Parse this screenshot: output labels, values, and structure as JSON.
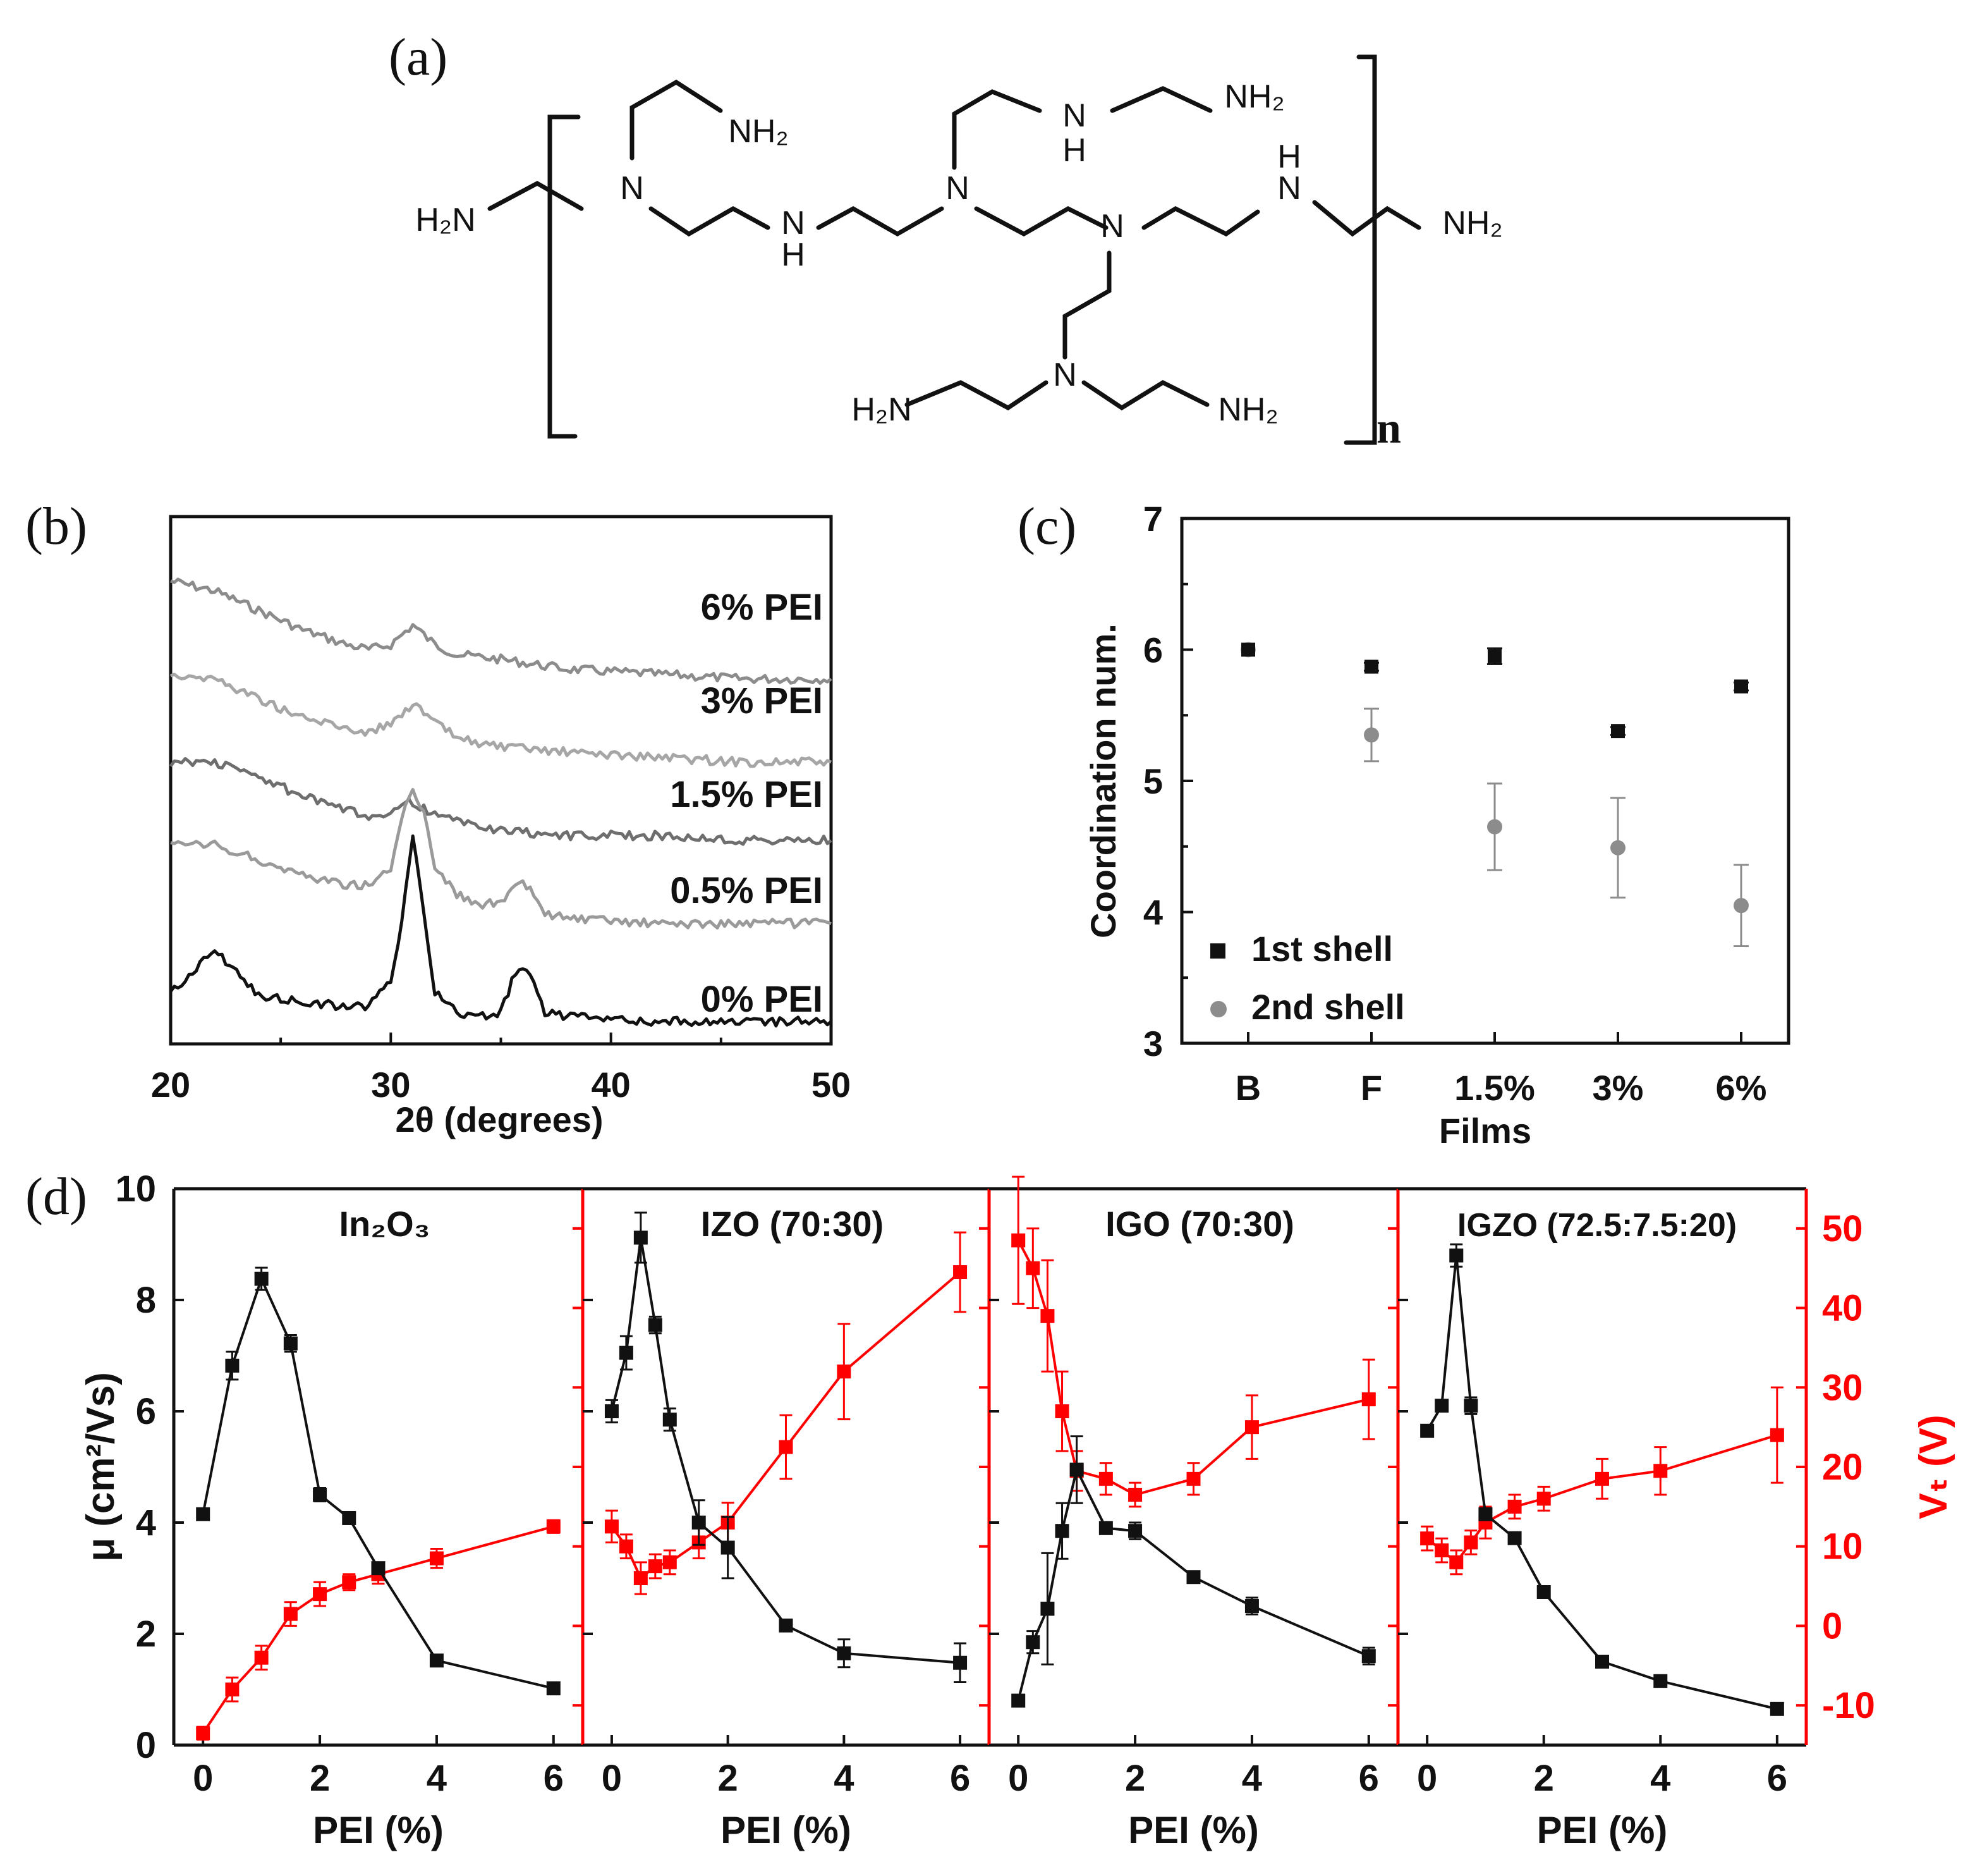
{
  "panel_labels": {
    "a": "(a)",
    "b": "(b)",
    "c": "(c)",
    "d": "(d)"
  },
  "colors": {
    "black": "#111111",
    "red": "#ff0000",
    "gray": "#8c8c8c"
  },
  "structure": {
    "subscript_n": "n",
    "atoms": [
      {
        "id": "h2n_left",
        "text": "H₂N"
      },
      {
        "id": "n1",
        "text": "N"
      },
      {
        "id": "nh2_top1",
        "text": "NH₂"
      },
      {
        "id": "nh_mid_N",
        "text": "N"
      },
      {
        "id": "nh_mid_H",
        "text": "H"
      },
      {
        "id": "n2",
        "text": "N"
      },
      {
        "id": "nh_top_N",
        "text": "N"
      },
      {
        "id": "nh_top_H",
        "text": "H"
      },
      {
        "id": "nh2_top2",
        "text": "NH₂"
      },
      {
        "id": "n3",
        "text": "N"
      },
      {
        "id": "nh_right_H",
        "text": "H"
      },
      {
        "id": "nh_right_N",
        "text": "N"
      },
      {
        "id": "nh2_right",
        "text": "NH₂"
      },
      {
        "id": "n4",
        "text": "N"
      },
      {
        "id": "h2n_bottom",
        "text": "H₂N"
      },
      {
        "id": "nh2_bottom",
        "text": "NH₂"
      }
    ]
  },
  "chart_data": [
    {
      "id": "b",
      "type": "line",
      "title": "",
      "xlabel": "2θ (degrees)",
      "ylabel": "",
      "xlim": [
        20,
        50
      ],
      "xticks": [
        "20",
        "30",
        "40",
        "50"
      ],
      "series": [
        {
          "name": "6% PEI",
          "color": "#8c8c8c",
          "x": [
            20,
            22,
            24,
            26,
            28,
            29,
            30,
            31,
            32,
            33,
            35,
            38,
            42,
            46,
            50
          ],
          "y": [
            0.92,
            0.9,
            0.86,
            0.82,
            0.79,
            0.78,
            0.79,
            0.83,
            0.79,
            0.77,
            0.76,
            0.74,
            0.73,
            0.72,
            0.72
          ]
        },
        {
          "name": "3% PEI",
          "color": "#a6a6a6",
          "x": [
            20,
            22,
            24,
            26,
            28,
            29,
            30,
            31,
            32,
            33,
            35,
            38,
            42,
            46,
            50
          ],
          "y": [
            0.73,
            0.72,
            0.68,
            0.64,
            0.62,
            0.61,
            0.63,
            0.67,
            0.63,
            0.6,
            0.58,
            0.57,
            0.56,
            0.55,
            0.55
          ]
        },
        {
          "name": "1.5% PEI",
          "color": "#6e6e6e",
          "x": [
            20,
            22,
            24,
            26,
            28,
            29,
            30,
            31,
            32,
            33,
            35,
            38,
            42,
            46,
            50
          ],
          "y": [
            0.55,
            0.55,
            0.52,
            0.48,
            0.45,
            0.44,
            0.45,
            0.47,
            0.44,
            0.43,
            0.41,
            0.4,
            0.4,
            0.39,
            0.39
          ]
        },
        {
          "name": "0.5% PEI",
          "color": "#9a9a9a",
          "x": [
            20,
            22,
            24,
            26,
            28,
            29,
            30,
            30.5,
            31,
            31.5,
            32,
            33,
            34,
            35,
            35.5,
            36,
            36.5,
            37,
            38,
            42,
            46,
            50
          ],
          "y": [
            0.38,
            0.38,
            0.35,
            0.32,
            0.3,
            0.3,
            0.33,
            0.44,
            0.49,
            0.45,
            0.34,
            0.28,
            0.26,
            0.26,
            0.29,
            0.3,
            0.28,
            0.24,
            0.23,
            0.22,
            0.22,
            0.22
          ]
        },
        {
          "name": "0% PEI",
          "color": "#111111",
          "x": [
            20,
            21,
            22,
            23,
            24,
            26,
            28,
            29,
            30,
            30.5,
            31,
            31.5,
            32,
            33,
            34,
            35,
            35.5,
            36,
            36.5,
            37,
            38,
            42,
            46,
            50
          ],
          "y": [
            0.08,
            0.12,
            0.17,
            0.12,
            0.07,
            0.06,
            0.05,
            0.05,
            0.1,
            0.22,
            0.4,
            0.25,
            0.08,
            0.04,
            0.03,
            0.04,
            0.1,
            0.13,
            0.1,
            0.04,
            0.03,
            0.02,
            0.02,
            0.02
          ]
        }
      ]
    },
    {
      "id": "c",
      "type": "scatter",
      "title": "",
      "xlabel": "Films",
      "ylabel": "Coordination num.",
      "ylim": [
        3,
        7
      ],
      "yticks": [
        "3",
        "4",
        "5",
        "6",
        "7"
      ],
      "categories": [
        "B",
        "F",
        "1.5%",
        "3%",
        "6%"
      ],
      "legend": "bottom-left",
      "series": [
        {
          "name": "1st shell",
          "marker": "square",
          "color": "#111111",
          "values": [
            6.0,
            5.87,
            5.95,
            5.38,
            5.72
          ],
          "errors": [
            0,
            0.03,
            0.06,
            0.03,
            0.03
          ]
        },
        {
          "name": "2nd shell",
          "marker": "circle",
          "color": "#8c8c8c",
          "values": [
            6.0,
            5.35,
            4.65,
            4.49,
            4.05
          ],
          "errors": [
            0,
            0.2,
            0.33,
            0.38,
            0.31
          ]
        }
      ]
    },
    {
      "id": "d",
      "type": "line",
      "title": "",
      "ylabel_left": "μ (cm²/Vs)",
      "ylabel_right": "Vₜ (V)",
      "ylim_left": [
        0,
        10
      ],
      "yticks_left": [
        "0",
        "2",
        "4",
        "6",
        "8",
        "10"
      ],
      "ylim_right": [
        -15,
        55
      ],
      "yticks_right": [
        "-10",
        "0",
        "10",
        "20",
        "30",
        "40",
        "50"
      ],
      "xlim": [
        -0.5,
        6.5
      ],
      "xticks": [
        "0",
        "2",
        "4",
        "6"
      ],
      "subplots": [
        {
          "title": "In₂O₃",
          "xlabel": "PEI (%)",
          "mobility": {
            "name": "μ",
            "color": "#111111",
            "x": [
              0,
              0.5,
              1,
              1.5,
              2,
              2.5,
              3,
              4,
              6
            ],
            "y": [
              4.15,
              6.82,
              8.38,
              7.22,
              4.5,
              4.08,
              3.18,
              1.52,
              1.02
            ],
            "errors": [
              0.05,
              0.25,
              0.2,
              0.15,
              0.12,
              0.05,
              0.08,
              0.05,
              0.05
            ]
          },
          "threshold": {
            "name": "Vₜ",
            "color": "#ff0000",
            "x": [
              0,
              0.5,
              1,
              1.5,
              2,
              2.5,
              3,
              4,
              6
            ],
            "y": [
              -13.5,
              -8,
              -4,
              1.5,
              4,
              5.5,
              6.5,
              8.5,
              12.5
            ],
            "errors": [
              0.8,
              1.5,
              1.5,
              1.5,
              1.5,
              1,
              1.2,
              1.2,
              0.8
            ]
          }
        },
        {
          "title": "IZO (70:30)",
          "xlabel": "PEI (%)",
          "mobility": {
            "name": "μ",
            "color": "#111111",
            "x": [
              0,
              0.25,
              0.5,
              0.75,
              1,
              1.5,
              2,
              3,
              4,
              6
            ],
            "y": [
              6.0,
              7.05,
              9.12,
              7.55,
              5.85,
              4.0,
              3.55,
              2.15,
              1.65,
              1.48
            ],
            "errors": [
              0.2,
              0.3,
              0.45,
              0.15,
              0.2,
              0.4,
              0.55,
              0.1,
              0.25,
              0.35
            ]
          },
          "threshold": {
            "name": "Vₜ",
            "color": "#ff0000",
            "x": [
              0,
              0.25,
              0.5,
              0.75,
              1,
              1.5,
              2,
              3,
              4,
              6
            ],
            "y": [
              12.5,
              10,
              6,
              7.5,
              8,
              10.5,
              13,
              22.5,
              32,
              44.5
            ],
            "errors": [
              2,
              1.5,
              2,
              1.5,
              1.5,
              2,
              2.5,
              4,
              6,
              5
            ]
          }
        },
        {
          "title": "IGO (70:30)",
          "xlabel": "PEI (%)",
          "mobility": {
            "name": "μ",
            "color": "#111111",
            "x": [
              0,
              0.25,
              0.5,
              0.75,
              1,
              1.5,
              2,
              3,
              4,
              6
            ],
            "y": [
              0.8,
              1.85,
              2.45,
              3.85,
              4.95,
              3.9,
              3.85,
              3.02,
              2.5,
              1.6
            ],
            "errors": [
              0.05,
              0.2,
              1.0,
              0.5,
              0.6,
              0.1,
              0.15,
              0.05,
              0.15,
              0.15
            ]
          },
          "threshold": {
            "name": "Vₜ",
            "color": "#ff0000",
            "x": [
              0,
              0.25,
              0.5,
              0.75,
              1,
              1.5,
              2,
              3,
              4,
              6
            ],
            "y": [
              48.5,
              45,
              39,
              27,
              19.5,
              18.5,
              16.5,
              18.5,
              25,
              28.5
            ],
            "errors": [
              8,
              5,
              7,
              5,
              2.5,
              2,
              1.5,
              2,
              4,
              5
            ]
          }
        },
        {
          "title": "IGZO (72.5:7.5:20)",
          "xlabel": "PEI (%)",
          "mobility": {
            "name": "μ",
            "color": "#111111",
            "x": [
              0,
              0.25,
              0.5,
              0.75,
              1,
              1.5,
              2,
              3,
              4,
              6
            ],
            "y": [
              5.65,
              6.1,
              8.8,
              6.1,
              4.15,
              3.72,
              2.75,
              1.5,
              1.15,
              0.65
            ],
            "errors": [
              0.1,
              0.1,
              0.2,
              0.15,
              0.1,
              0.1,
              0.1,
              0.05,
              0.05,
              0.05
            ]
          },
          "threshold": {
            "name": "Vₜ",
            "color": "#ff0000",
            "x": [
              0,
              0.25,
              0.5,
              0.75,
              1,
              1.5,
              2,
              3,
              4,
              6
            ],
            "y": [
              11,
              9.5,
              8,
              10.5,
              13,
              15,
              16,
              18.5,
              19.5,
              24
            ],
            "errors": [
              1.5,
              1.5,
              1.5,
              1.5,
              2,
              1.5,
              1.5,
              2.5,
              3,
              6
            ]
          }
        }
      ]
    }
  ]
}
